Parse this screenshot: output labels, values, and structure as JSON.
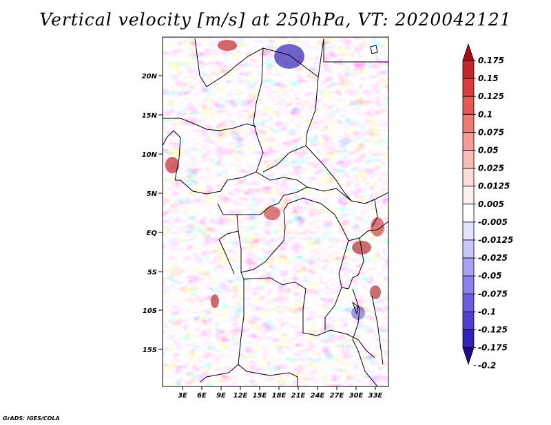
{
  "title": "Vertical velocity [m/s] at 250hPa, VT: 2020042121",
  "credit": "GrADS: IGES/COLA",
  "map": {
    "lat_labels": [
      "20N",
      "15N",
      "10N",
      "5N",
      "EQ",
      "5S",
      "10S",
      "15S"
    ],
    "lon_labels": [
      "3E",
      "6E",
      "9E",
      "12E",
      "15E",
      "18E",
      "21E",
      "24E",
      "27E",
      "30E",
      "33E"
    ]
  },
  "colorbar": {
    "labels": [
      "0.175",
      "0.15",
      "0.125",
      "0.1",
      "0.075",
      "0.05",
      "0.025",
      "0.0125",
      "0.005",
      "-0.005",
      "-0.0125",
      "-0.025",
      "-0.05",
      "-0.075",
      "-0.1",
      "-0.125",
      "-0.175",
      "-0.2"
    ],
    "colors": [
      "#a50f15",
      "#c0282c",
      "#d93c3c",
      "#e35a55",
      "#ec7b74",
      "#f39b94",
      "#f8bdb7",
      "#fcdcd8",
      "#fff0ef",
      "#ffffff",
      "#e3e2ff",
      "#c9c6fb",
      "#a8a2f2",
      "#8a82ea",
      "#6a60de",
      "#4d41cc",
      "#3322b4",
      "#1d0a8e"
    ]
  }
}
